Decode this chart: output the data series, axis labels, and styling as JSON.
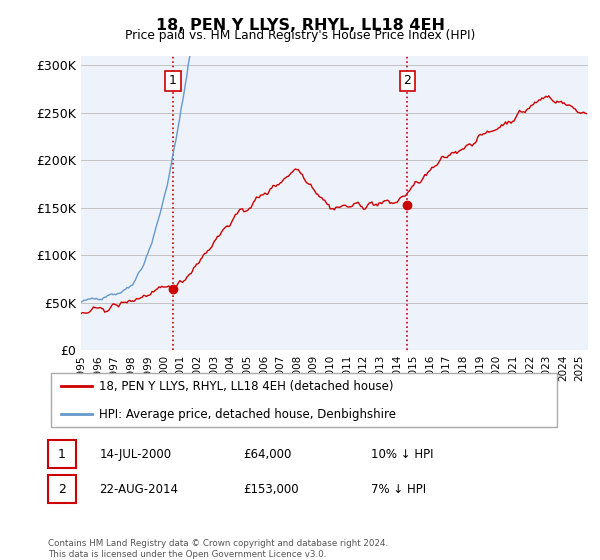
{
  "title": "18, PEN Y LLYS, RHYL, LL18 4EH",
  "subtitle": "Price paid vs. HM Land Registry's House Price Index (HPI)",
  "ylabel_ticks": [
    "£0",
    "£50K",
    "£100K",
    "£150K",
    "£200K",
    "£250K",
    "£300K"
  ],
  "ytick_values": [
    0,
    50000,
    100000,
    150000,
    200000,
    250000,
    300000
  ],
  "ylim": [
    0,
    310000
  ],
  "xlim_start": 1995.0,
  "xlim_end": 2025.5,
  "sale1_date": 2000.54,
  "sale1_price": 64000,
  "sale1_label": "1",
  "sale2_date": 2014.64,
  "sale2_price": 153000,
  "sale2_label": "2",
  "hpi_color": "#6699cc",
  "price_color": "#cc0000",
  "vline_color": "#cc0000",
  "background_color": "#eef2fb",
  "legend_label1": "18, PEN Y LLYS, RHYL, LL18 4EH (detached house)",
  "legend_label2": "HPI: Average price, detached house, Denbighshire",
  "note1_num": "1",
  "note1_date": "14-JUL-2000",
  "note1_price": "£64,000",
  "note1_hpi": "10% ↓ HPI",
  "note2_num": "2",
  "note2_date": "22-AUG-2014",
  "note2_price": "£153,000",
  "note2_hpi": "7% ↓ HPI",
  "footer": "Contains HM Land Registry data © Crown copyright and database right 2024.\nThis data is licensed under the Open Government Licence v3.0."
}
